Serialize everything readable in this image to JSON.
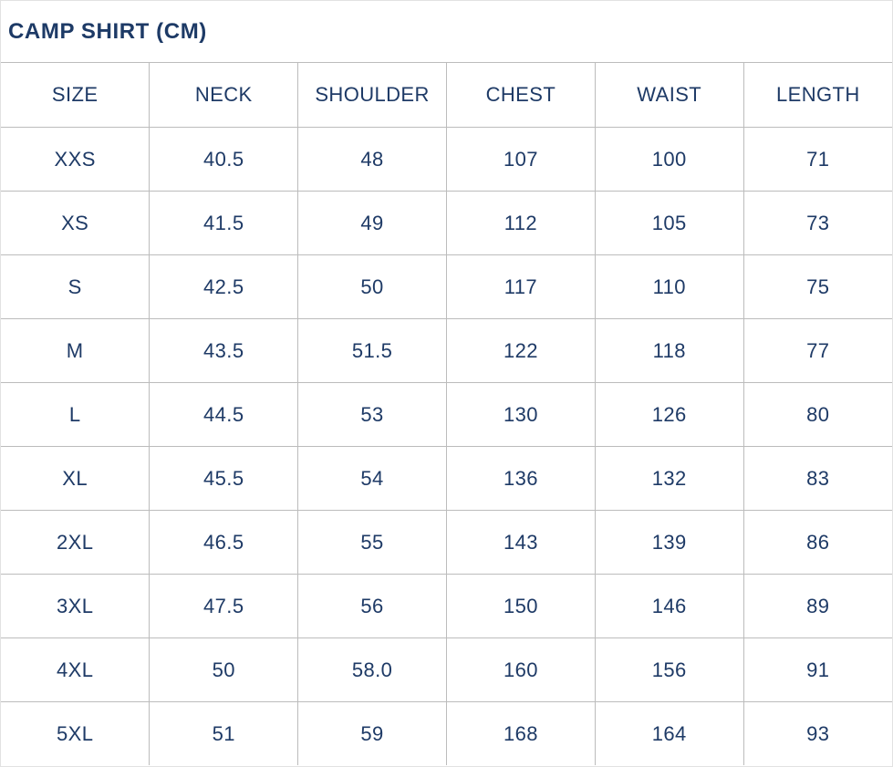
{
  "title": "CAMP SHIRT (CM)",
  "colors": {
    "text_navy": "#1e3a66",
    "grid_border": "#bcbcbc",
    "outer_border": "#e2e2e2",
    "background": "#ffffff"
  },
  "chart_data": {
    "type": "table",
    "title": "CAMP SHIRT (CM)",
    "columns": [
      "SIZE",
      "NECK",
      "SHOULDER",
      "CHEST",
      "WAIST",
      "LENGTH"
    ],
    "rows": [
      [
        "XXS",
        "40.5",
        "48",
        "107",
        "100",
        "71"
      ],
      [
        "XS",
        "41.5",
        "49",
        "112",
        "105",
        "73"
      ],
      [
        "S",
        "42.5",
        "50",
        "117",
        "110",
        "75"
      ],
      [
        "M",
        "43.5",
        "51.5",
        "122",
        "118",
        "77"
      ],
      [
        "L",
        "44.5",
        "53",
        "130",
        "126",
        "80"
      ],
      [
        "XL",
        "45.5",
        "54",
        "136",
        "132",
        "83"
      ],
      [
        "2XL",
        "46.5",
        "55",
        "143",
        "139",
        "86"
      ],
      [
        "3XL",
        "47.5",
        "56",
        "150",
        "146",
        "89"
      ],
      [
        "4XL",
        "50",
        "58.0",
        "160",
        "156",
        "91"
      ],
      [
        "5XL",
        "51",
        "59",
        "168",
        "164",
        "93"
      ]
    ]
  }
}
